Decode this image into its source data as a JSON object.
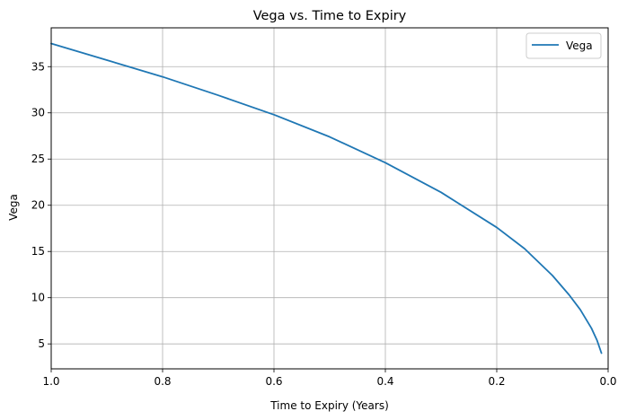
{
  "chart_data": {
    "type": "line",
    "title": "Vega vs. Time to Expiry",
    "xlabel": "Time to Expiry (Years)",
    "ylabel": "Vega",
    "xlim": [
      1.0,
      0.0
    ],
    "x_inverted": true,
    "ylim": [
      2.3,
      39.2
    ],
    "x_ticks": [
      1.0,
      0.8,
      0.6,
      0.4,
      0.2,
      0.0
    ],
    "x_tick_labels": [
      "1.0",
      "0.8",
      "0.6",
      "0.4",
      "0.2",
      "0.0"
    ],
    "y_ticks": [
      5,
      10,
      15,
      20,
      25,
      30,
      35
    ],
    "y_tick_labels": [
      "5",
      "10",
      "15",
      "20",
      "25",
      "30",
      "35"
    ],
    "grid": true,
    "legend_position": "top-right",
    "series": [
      {
        "name": "Vega",
        "color": "#1f77b4",
        "x": [
          1.0,
          0.9,
          0.8,
          0.7,
          0.6,
          0.5,
          0.4,
          0.3,
          0.2,
          0.15,
          0.1,
          0.07,
          0.05,
          0.03,
          0.02,
          0.012
        ],
        "y": [
          37.5,
          35.7,
          33.9,
          31.9,
          29.8,
          27.4,
          24.6,
          21.4,
          17.6,
          15.3,
          12.4,
          10.3,
          8.7,
          6.7,
          5.4,
          4.0
        ]
      }
    ]
  }
}
